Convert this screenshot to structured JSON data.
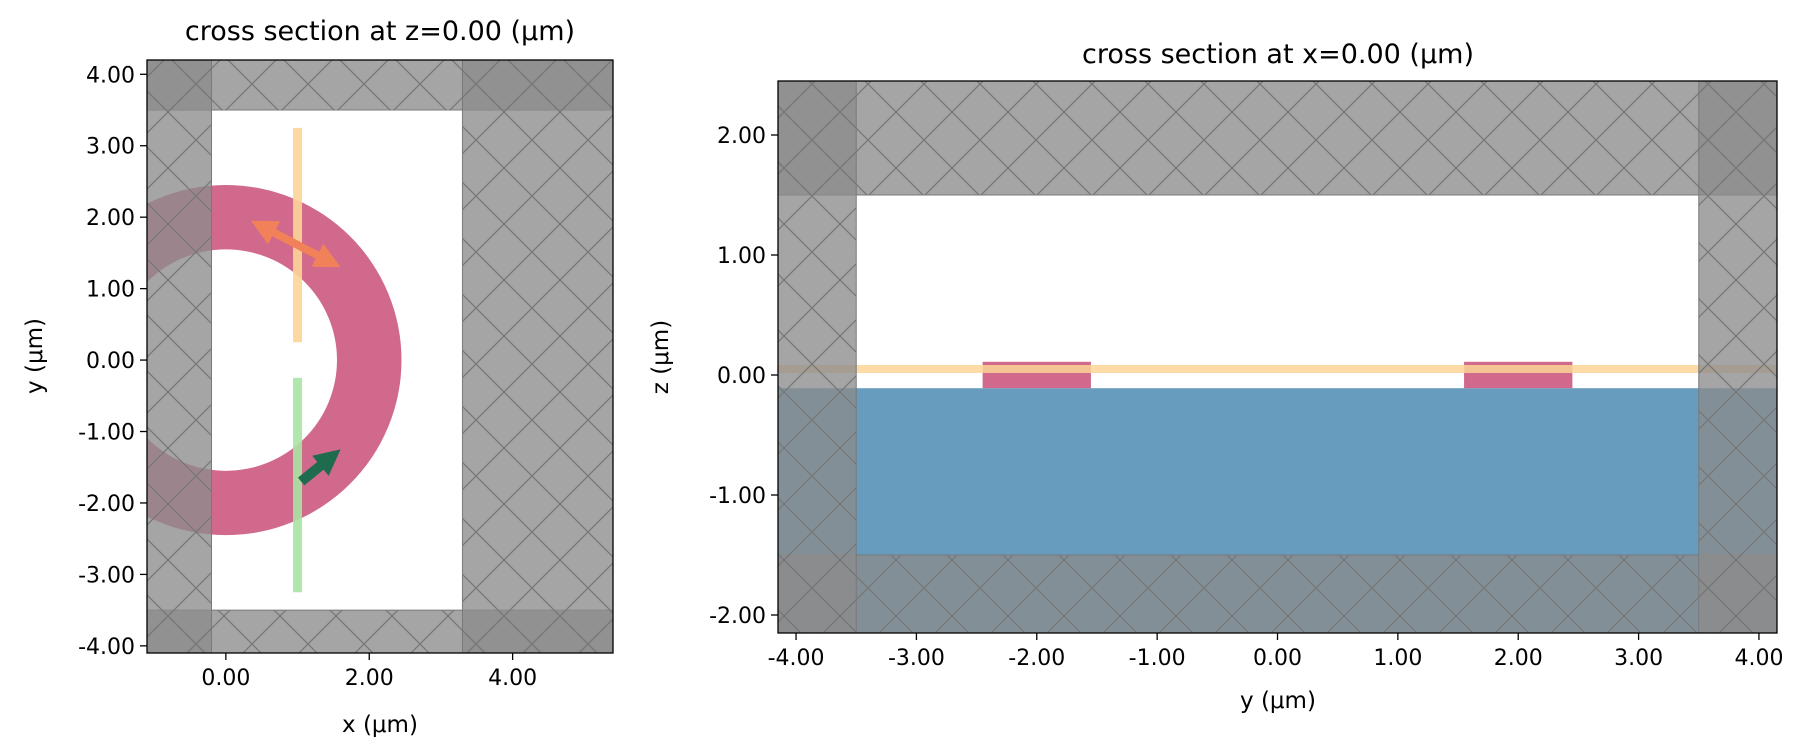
{
  "colors": {
    "pml": "#8c8c8c",
    "pml_overlap": "#6e6e6e",
    "structure": "#d0698c",
    "substrate": "#679cbe",
    "source": "#f08158",
    "source_line": "#fcd596",
    "monitor": "#a8e4a3",
    "mode_arrow": "#1f6b4e"
  },
  "chart_data": [
    {
      "type": "area",
      "title": "cross section at z=0.00 (μm)",
      "xlabel": "x (μm)",
      "ylabel": "y (μm)",
      "xlim": [
        -1.1,
        5.4
      ],
      "ylim": [
        -4.1,
        4.2
      ],
      "xticks": [
        0,
        2,
        4
      ],
      "xtick_labels": [
        "0.00",
        "2.00",
        "4.00"
      ],
      "yticks": [
        4,
        3,
        2,
        1,
        0,
        -1,
        -2,
        -3,
        -4
      ],
      "ytick_labels": [
        "4.00",
        "3.00",
        "2.00",
        "1.00",
        "0.00",
        "-1.00",
        "-2.00",
        "-3.00",
        "-4.00"
      ],
      "simulation_domain": {
        "x": [
          -0.2,
          3.3
        ],
        "y": [
          -3.5,
          3.5
        ]
      },
      "ring": {
        "center": [
          0,
          0
        ],
        "inner_radius": 1.55,
        "outer_radius": 2.45
      },
      "source_plane": {
        "x": 1.0,
        "y": [
          0.25,
          3.25
        ]
      },
      "monitor_plane": {
        "x": 1.0,
        "y": [
          -3.25,
          -0.25
        ]
      },
      "source_arrow": {
        "from": [
          0.35,
          1.95
        ],
        "to": [
          1.6,
          1.3
        ]
      },
      "monitor_arrow": {
        "from": [
          1.05,
          -1.7
        ],
        "to": [
          1.6,
          -1.25
        ]
      },
      "grid": false
    },
    {
      "type": "area",
      "title": "cross section at x=0.00 (μm)",
      "xlabel": "y (μm)",
      "ylabel": "z (μm)",
      "xlim": [
        -4.15,
        4.15
      ],
      "ylim": [
        -2.15,
        2.45
      ],
      "xticks": [
        -4,
        -3,
        -2,
        -1,
        0,
        1,
        2,
        3,
        4
      ],
      "xtick_labels": [
        "-4.00",
        "-3.00",
        "-2.00",
        "-1.00",
        "0.00",
        "1.00",
        "2.00",
        "3.00",
        "4.00"
      ],
      "yticks": [
        2,
        1,
        0,
        -1,
        -2
      ],
      "ytick_labels": [
        "2.00",
        "1.00",
        "0.00",
        "-1.00",
        "-2.00"
      ],
      "simulation_domain": {
        "y": [
          -3.5,
          3.5
        ],
        "z": [
          -1.5,
          1.5
        ]
      },
      "substrate": {
        "z": [
          -2.15,
          -0.11
        ]
      },
      "waveguides": [
        {
          "y": [
            -2.45,
            -1.55
          ],
          "z": [
            -0.11,
            0.11
          ]
        },
        {
          "y": [
            1.55,
            2.45
          ],
          "z": [
            -0.11,
            0.11
          ]
        }
      ],
      "source_line": {
        "z": 0.05,
        "y": [
          -4.15,
          4.15
        ]
      },
      "grid": false
    }
  ]
}
